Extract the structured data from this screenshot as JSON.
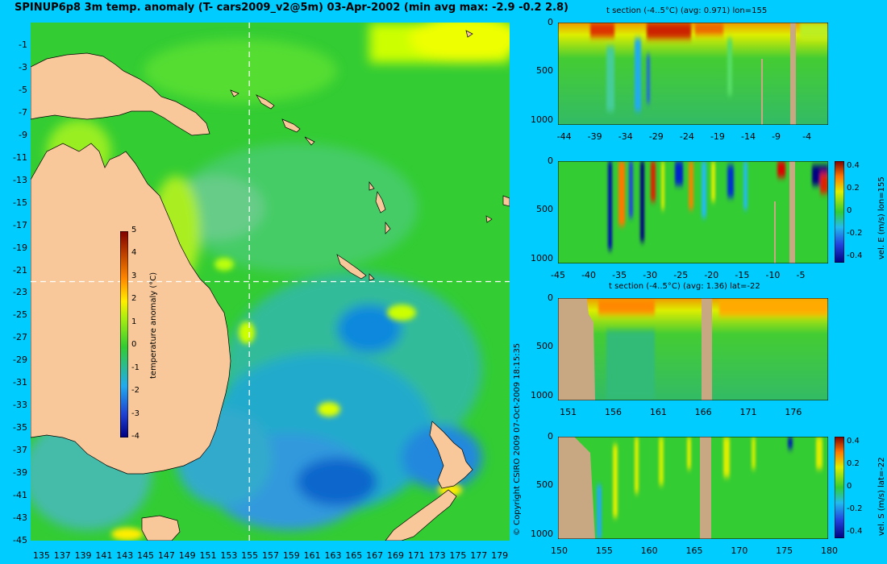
{
  "title": "SPINUP6p8 3m temp. anomaly (T- cars2009_v2@5m) 03-Apr-2002 (min avg max: -2.9 -0.2 2.8)",
  "copyright": "© Copyright CSIRO 2009   07-Oct-2009 18:15:35",
  "colors": {
    "background": "#00ccff",
    "land": "#f8c89a",
    "section_land": "#c8a882",
    "base_ocean": "#33cc33"
  },
  "chart_data": [
    {
      "type": "heatmap",
      "name": "map",
      "xticks": [
        "135",
        "137",
        "139",
        "141",
        "143",
        "145",
        "147",
        "149",
        "151",
        "153",
        "155",
        "157",
        "159",
        "161",
        "163",
        "165",
        "167",
        "169",
        "171",
        "173",
        "175",
        "177",
        "179"
      ],
      "yticks": [
        "-1",
        "-3",
        "-5",
        "-7",
        "-9",
        "-11",
        "-13",
        "-15",
        "-17",
        "-19",
        "-21",
        "-23",
        "-25",
        "-27",
        "-29",
        "-31",
        "-33",
        "-35",
        "-37",
        "-39",
        "-41",
        "-43",
        "-45"
      ],
      "xlim": [
        134,
        180
      ],
      "ylim": [
        -45,
        1
      ],
      "crosshair": {
        "lon": 155,
        "lat": -22
      },
      "colorbar": {
        "label": "temperature anomaly (°C)",
        "ticks": [
          "5",
          "4",
          "3",
          "2",
          "1",
          "0",
          "-1",
          "-2",
          "-3",
          "-4"
        ],
        "range": [
          -4,
          5
        ]
      }
    },
    {
      "type": "heatmap",
      "name": "t-section-lon155",
      "title": "t section (-4..5°C) (avg: 0.971) lon=155",
      "xticks": [
        "-44",
        "-39",
        "-34",
        "-29",
        "-24",
        "-19",
        "-14",
        "-9",
        "-4"
      ],
      "xlim": [
        -45,
        -1
      ],
      "yticks": [
        "0",
        "500",
        "1000"
      ],
      "ylim": [
        0,
        1050
      ]
    },
    {
      "type": "heatmap",
      "name": "vel-e-lon155",
      "xticks": [
        "-45",
        "-40",
        "-35",
        "-30",
        "-25",
        "-20",
        "-15",
        "-10",
        "-5"
      ],
      "xlim": [
        -45,
        -1
      ],
      "yticks": [
        "0",
        "500",
        "1000"
      ],
      "ylim": [
        0,
        1050
      ],
      "colorbar": {
        "label": "vel. E (m/s) lon=155",
        "ticks": [
          "0.4",
          "0.2",
          "0",
          "-0.2",
          "-0.4"
        ],
        "range": [
          -0.45,
          0.45
        ]
      }
    },
    {
      "type": "heatmap",
      "name": "t-section-lat-22",
      "title": "t section (-4..5°C) (avg: 1.36) lat=-22",
      "xticks": [
        "151",
        "156",
        "161",
        "166",
        "171",
        "176"
      ],
      "xlim": [
        150,
        180
      ],
      "yticks": [
        "0",
        "500",
        "1000"
      ],
      "ylim": [
        0,
        1050
      ]
    },
    {
      "type": "heatmap",
      "name": "vel-s-lat-22",
      "xticks": [
        "150",
        "155",
        "160",
        "165",
        "170",
        "175",
        "180"
      ],
      "xlim": [
        150,
        180
      ],
      "yticks": [
        "0",
        "500",
        "1000"
      ],
      "ylim": [
        0,
        1050
      ],
      "colorbar": {
        "label": "vel. S (m/s) lat=-22",
        "ticks": [
          "0.4",
          "0.2",
          "0",
          "-0.2",
          "-0.4"
        ],
        "range": [
          -0.45,
          0.45
        ]
      }
    }
  ]
}
